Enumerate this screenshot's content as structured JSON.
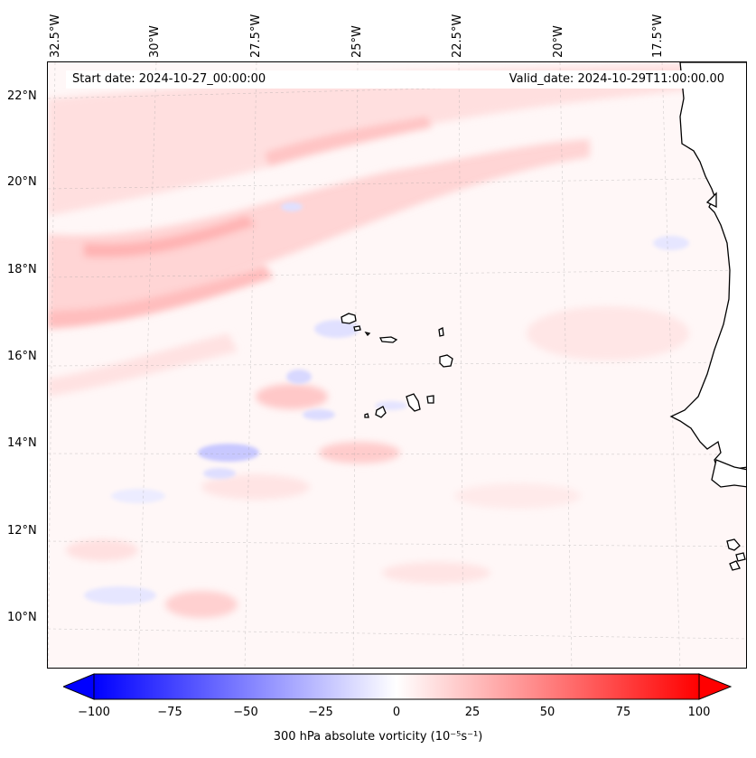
{
  "map": {
    "start_date_text": "Start date: 2024-10-27_00:00:00",
    "valid_date_text": "Valid_date: 2024-10-29T11:00:00.00",
    "lon_labels": [
      "32.5°W",
      "30°W",
      "27.5°W",
      "25°W",
      "22.5°W",
      "20°W",
      "17.5°W"
    ],
    "lat_labels": [
      "22°N",
      "20°N",
      "18°N",
      "16°N",
      "14°N",
      "12°N",
      "10°N"
    ],
    "colormap": {
      "negative": "#0000ff",
      "zero": "#ffffff",
      "positive": "#ff0000"
    }
  },
  "colorbar": {
    "tick_labels": [
      "−100",
      "−75",
      "−50",
      "−25",
      "0",
      "25",
      "50",
      "75",
      "100"
    ],
    "range": [
      -100,
      100
    ],
    "label_text": "300 hPa absolute vorticity (10⁻⁵s⁻¹)"
  }
}
